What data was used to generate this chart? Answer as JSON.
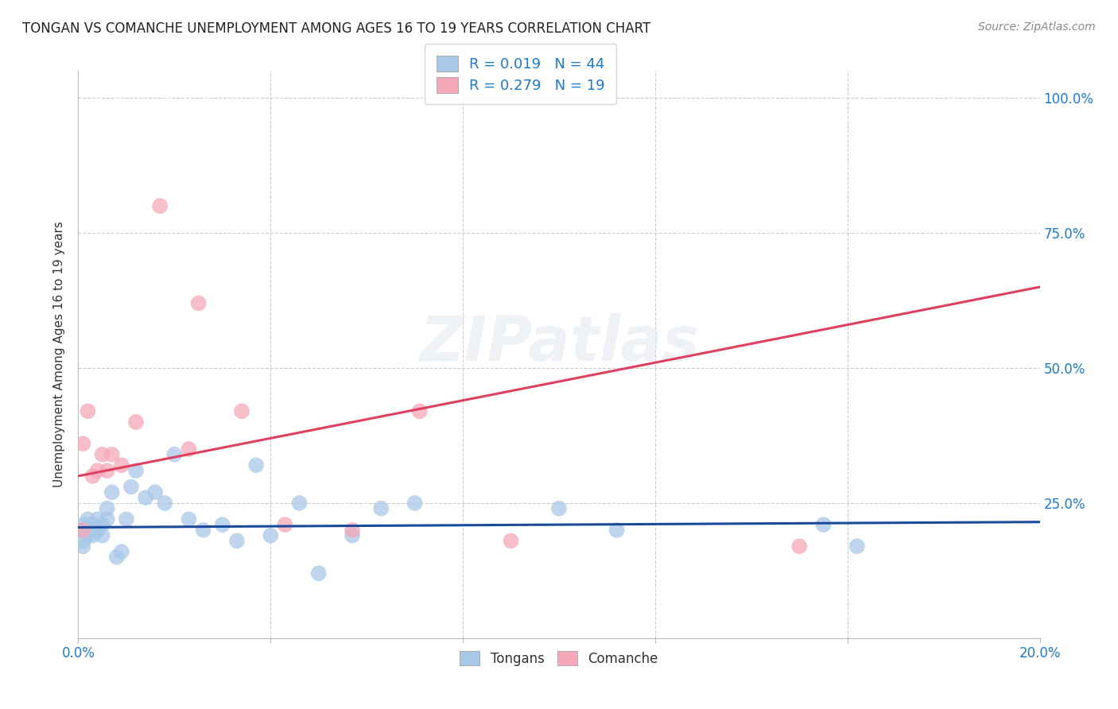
{
  "title": "TONGAN VS COMANCHE UNEMPLOYMENT AMONG AGES 16 TO 19 YEARS CORRELATION CHART",
  "source": "Source: ZipAtlas.com",
  "ylabel": "Unemployment Among Ages 16 to 19 years",
  "xlim": [
    0.0,
    0.2
  ],
  "ylim": [
    0.0,
    1.05
  ],
  "tongans_R": 0.019,
  "tongans_N": 44,
  "comanche_R": 0.279,
  "comanche_N": 19,
  "tongans_color": "#a8c8e8",
  "comanche_color": "#f4a8b8",
  "tongans_line_color": "#1a4a9a",
  "comanche_line_color": "#e04060",
  "background_color": "#ffffff",
  "grid_color": "#cccccc",
  "title_color": "#222222",
  "tick_color": "#1a7acc",
  "tongans_x": [
    0.001,
    0.001,
    0.001,
    0.001,
    0.001,
    0.002,
    0.002,
    0.002,
    0.002,
    0.003,
    0.003,
    0.003,
    0.004,
    0.004,
    0.004,
    0.005,
    0.005,
    0.006,
    0.006,
    0.007,
    0.008,
    0.009,
    0.01,
    0.011,
    0.012,
    0.014,
    0.016,
    0.018,
    0.02,
    0.023,
    0.026,
    0.03,
    0.033,
    0.037,
    0.04,
    0.046,
    0.05,
    0.057,
    0.063,
    0.07,
    0.1,
    0.112,
    0.155,
    0.162
  ],
  "tongans_y": [
    0.2,
    0.2,
    0.21,
    0.18,
    0.17,
    0.21,
    0.2,
    0.19,
    0.22,
    0.2,
    0.19,
    0.21,
    0.2,
    0.22,
    0.2,
    0.19,
    0.21,
    0.22,
    0.24,
    0.27,
    0.15,
    0.16,
    0.22,
    0.28,
    0.31,
    0.26,
    0.27,
    0.25,
    0.34,
    0.22,
    0.2,
    0.21,
    0.18,
    0.32,
    0.19,
    0.25,
    0.12,
    0.19,
    0.24,
    0.25,
    0.24,
    0.2,
    0.21,
    0.17
  ],
  "comanche_x": [
    0.001,
    0.001,
    0.002,
    0.003,
    0.004,
    0.005,
    0.006,
    0.007,
    0.009,
    0.012,
    0.017,
    0.023,
    0.025,
    0.034,
    0.043,
    0.057,
    0.071,
    0.09,
    0.15
  ],
  "comanche_y": [
    0.2,
    0.36,
    0.42,
    0.3,
    0.31,
    0.34,
    0.31,
    0.34,
    0.32,
    0.4,
    0.8,
    0.35,
    0.62,
    0.42,
    0.21,
    0.2,
    0.42,
    0.18,
    0.17
  ],
  "tongans_line_y0": 0.205,
  "tongans_line_y1": 0.215,
  "comanche_line_y0": 0.3,
  "comanche_line_y1": 0.65,
  "watermark_text": "ZIPatlas",
  "figsize": [
    14.06,
    8.92
  ],
  "dpi": 100
}
